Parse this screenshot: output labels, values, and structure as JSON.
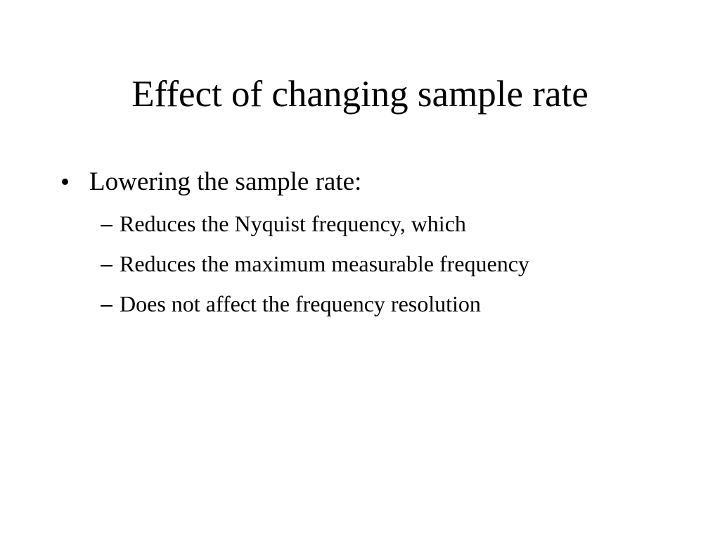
{
  "slide": {
    "title": "Effect of changing sample rate",
    "bullets": [
      {
        "text": "Lowering the sample rate:",
        "subitems": [
          "Reduces the Nyquist frequency, which",
          "Reduces the maximum measurable frequency",
          "Does not affect the frequency resolution"
        ]
      }
    ]
  }
}
